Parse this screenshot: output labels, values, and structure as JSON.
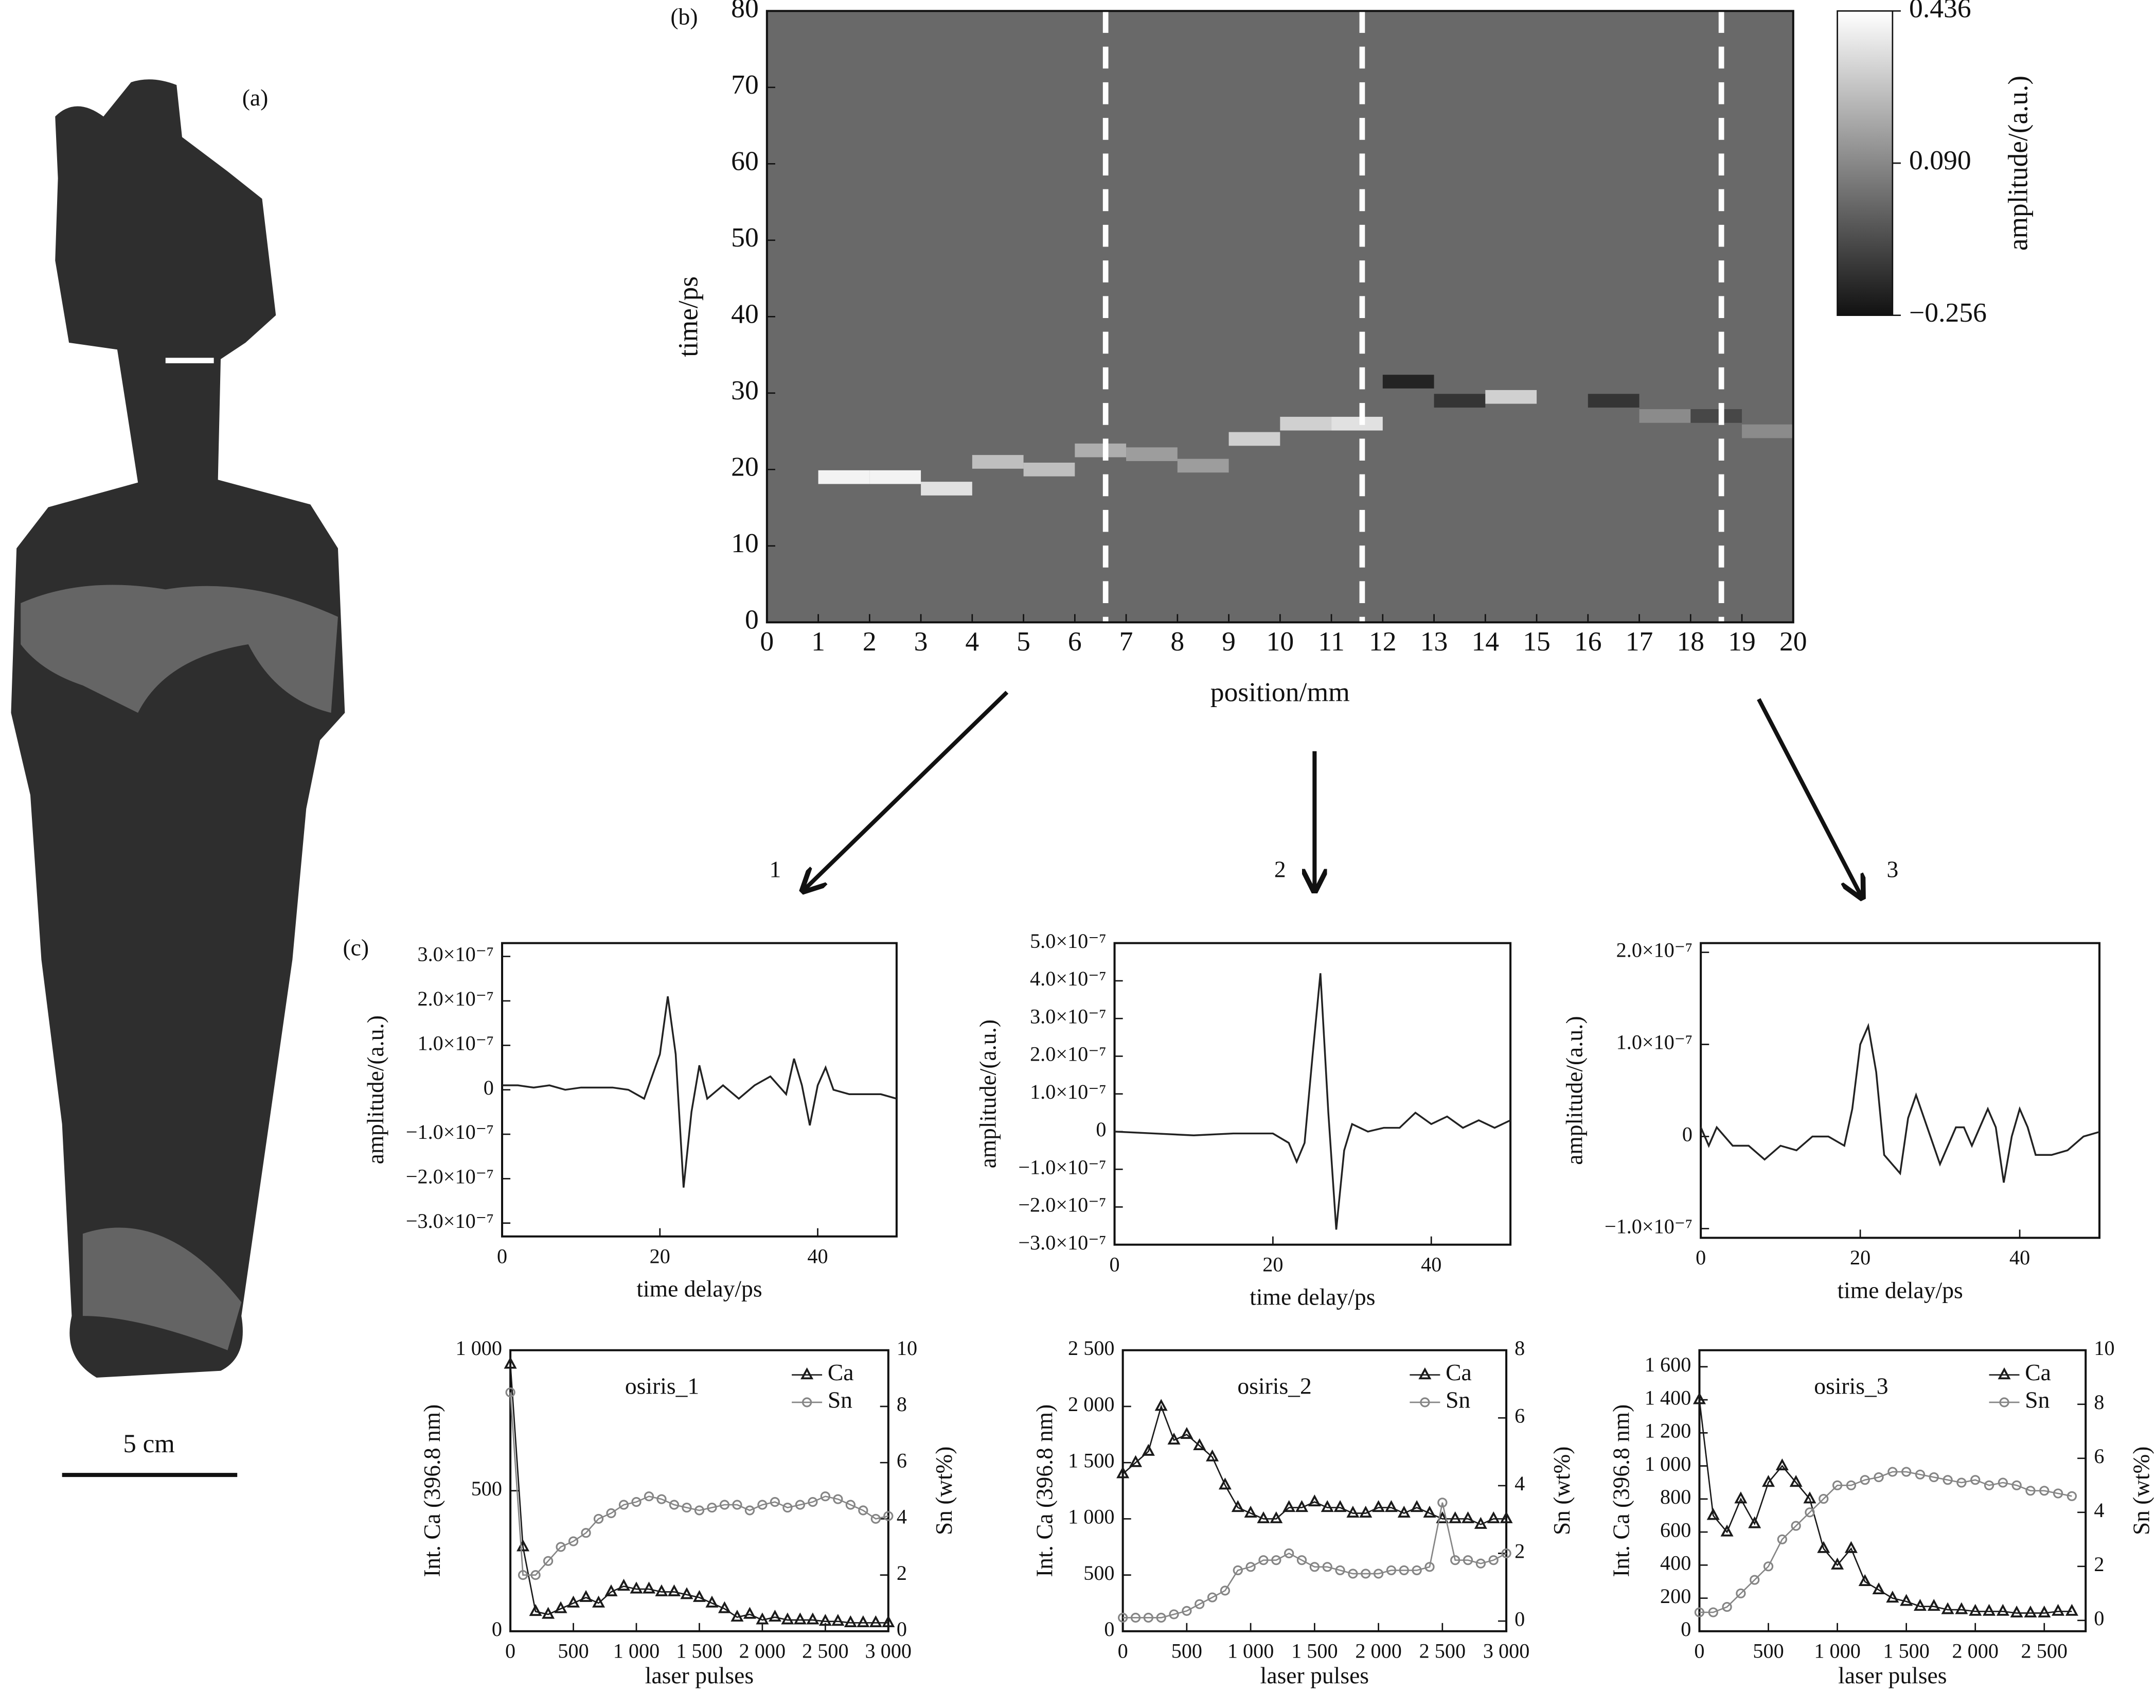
{
  "figure": {
    "panel_a": "(a)",
    "scale_bar": "5 cm",
    "arrow_labels": [
      "1",
      "2",
      "3"
    ]
  },
  "chart_data": [
    {
      "type": "heatmap",
      "panel_label": "(b)",
      "xlabel": "position/mm",
      "ylabel": "time/ps",
      "xlim": [
        0,
        20
      ],
      "xticks": [
        0,
        1,
        2,
        3,
        4,
        5,
        6,
        7,
        8,
        9,
        10,
        11,
        12,
        13,
        14,
        15,
        16,
        17,
        18,
        19,
        20
      ],
      "ylim": [
        0,
        80
      ],
      "yticks": [
        0,
        10,
        20,
        30,
        40,
        50,
        60,
        70,
        80
      ],
      "x": [
        0.5,
        1.5,
        2.5,
        3.5,
        4.5,
        5.5,
        6.5,
        7.5,
        8.5,
        9.5,
        10.5,
        11.5,
        12.5,
        13.5,
        14.5,
        15.5,
        16.5,
        17.5,
        18.5,
        19.5
      ],
      "values": [
        null,
        19,
        19,
        17.5,
        21,
        20,
        22.5,
        22,
        20.5,
        24,
        26,
        26,
        31.5,
        29,
        29.5,
        null,
        29,
        27,
        27,
        25
      ],
      "amplitude": [
        null,
        0.4,
        0.4,
        0.35,
        0.25,
        0.25,
        0.2,
        0.15,
        0.15,
        0.3,
        0.3,
        0.35,
        -0.2,
        -0.15,
        0.3,
        null,
        -0.15,
        0.1,
        -0.1,
        0.1
      ],
      "dashed_lines": [
        6.6,
        11.6,
        18.6
      ],
      "colorbar": {
        "label": "amplitude/(a.u.)",
        "lim": [
          -0.256,
          0.436
        ],
        "ticks": [
          {
            "value": -0.256,
            "label": "−0.256"
          },
          {
            "value": 0.09,
            "label": "0.090"
          },
          0.436
        ]
      }
    },
    {
      "type": "line",
      "panel_label": "(c)",
      "xlabel": "time delay/ps",
      "ylabel": "amplitude/(a.u.)",
      "color": "#222222",
      "xlim": [
        0,
        50
      ],
      "xticks": [
        0,
        20,
        40
      ],
      "ylim": [
        -3.3e-07,
        3.3e-07
      ],
      "yticks": [
        {
          "value": -3e-07,
          "label": "−3.0×10⁻⁷"
        },
        {
          "value": -2e-07,
          "label": "−2.0×10⁻⁷"
        },
        {
          "value": -1e-07,
          "label": "−1.0×10⁻⁷"
        },
        0,
        {
          "value": 1e-07,
          "label": "1.0×10⁻⁷"
        },
        {
          "value": 2e-07,
          "label": "2.0×10⁻⁷"
        },
        {
          "value": 3e-07,
          "label": "3.0×10⁻⁷"
        }
      ],
      "x": [
        0,
        2,
        4,
        6,
        8,
        10,
        12,
        14,
        16,
        18,
        20,
        21,
        22,
        23,
        24,
        25,
        26,
        28,
        30,
        32,
        34,
        36,
        37,
        38,
        39,
        40,
        41,
        42,
        44,
        46,
        48,
        50
      ],
      "values": [
        1e-08,
        1e-08,
        5e-09,
        1e-08,
        0,
        5e-09,
        5e-09,
        5e-09,
        0,
        -2e-08,
        8e-08,
        2.1e-07,
        8e-08,
        -2.2e-07,
        -5e-08,
        5.5e-08,
        -2e-08,
        1e-08,
        -2e-08,
        1e-08,
        3e-08,
        -1e-08,
        7e-08,
        1e-08,
        -8e-08,
        1e-08,
        5e-08,
        0,
        -1e-08,
        -1e-08,
        -1e-08,
        -2e-08
      ]
    },
    {
      "type": "line",
      "xlabel": "time delay/ps",
      "ylabel": "amplitude/(a.u.)",
      "color": "#222222",
      "xlim": [
        0,
        50
      ],
      "xticks": [
        0,
        20,
        40
      ],
      "ylim": [
        -3e-07,
        5e-07
      ],
      "yticks": [
        {
          "value": -3e-07,
          "label": "−3.0×10⁻⁷"
        },
        {
          "value": -2e-07,
          "label": "−2.0×10⁻⁷"
        },
        {
          "value": -1e-07,
          "label": "−1.0×10⁻⁷"
        },
        0,
        {
          "value": 1e-07,
          "label": "1.0×10⁻⁷"
        },
        {
          "value": 2e-07,
          "label": "2.0×10⁻⁷"
        },
        {
          "value": 3e-07,
          "label": "3.0×10⁻⁷"
        },
        {
          "value": 4e-07,
          "label": "4.0×10⁻⁷"
        },
        {
          "value": 5e-07,
          "label": "5.0×10⁻⁷"
        }
      ],
      "x": [
        0,
        5,
        10,
        15,
        20,
        22,
        23,
        24,
        25,
        26,
        27,
        28,
        29,
        30,
        32,
        34,
        36,
        38,
        40,
        42,
        44,
        46,
        48,
        50
      ],
      "values": [
        0,
        -5e-09,
        -1e-08,
        -5e-09,
        -5e-09,
        -3e-08,
        -8e-08,
        -3e-08,
        2e-07,
        4.2e-07,
        5e-08,
        -2.6e-07,
        -5e-08,
        2e-08,
        0,
        1e-08,
        1e-08,
        5e-08,
        2e-08,
        4e-08,
        1e-08,
        3e-08,
        1e-08,
        3e-08
      ]
    },
    {
      "type": "line",
      "xlabel": "time delay/ps",
      "ylabel": "amplitude/(a.u.)",
      "color": "#222222",
      "xlim": [
        0,
        50
      ],
      "xticks": [
        0,
        20,
        40
      ],
      "ylim": [
        -1.1e-07,
        2.1e-07
      ],
      "yticks": [
        {
          "value": -1e-07,
          "label": "−1.0×10⁻⁷"
        },
        0,
        {
          "value": 1e-07,
          "label": "1.0×10⁻⁷"
        },
        {
          "value": 2e-07,
          "label": "2.0×10⁻⁷"
        }
      ],
      "x": [
        0,
        1,
        2,
        4,
        6,
        8,
        10,
        12,
        14,
        16,
        18,
        19,
        20,
        21,
        22,
        23,
        25,
        26,
        27,
        28,
        30,
        32,
        33,
        34,
        36,
        37,
        38,
        39,
        40,
        41,
        42,
        44,
        46,
        48,
        50
      ],
      "values": [
        1e-08,
        -1e-08,
        1e-08,
        -1e-08,
        -1e-08,
        -2.5e-08,
        -1e-08,
        -1.5e-08,
        0,
        0,
        -1e-08,
        3e-08,
        1e-07,
        1.2e-07,
        7e-08,
        -2e-08,
        -4e-08,
        2e-08,
        4.5e-08,
        2e-08,
        -3e-08,
        1e-08,
        1e-08,
        -1e-08,
        3e-08,
        1e-08,
        -5e-08,
        0,
        3e-08,
        1e-08,
        -2e-08,
        -2e-08,
        -1.5e-08,
        0,
        5e-09
      ]
    },
    {
      "type": "dual",
      "title": "osiris_1",
      "xlabel": "laser pulses",
      "ylabel": "Int. Ca (396.8 nm)",
      "y2label": "Sn (wt%)",
      "xlim": [
        0,
        3000
      ],
      "xticks": [
        0,
        500,
        {
          "value": 1000,
          "label": "1 000"
        },
        {
          "value": 1500,
          "label": "1 500"
        },
        {
          "value": 2000,
          "label": "2 000"
        },
        {
          "value": 2500,
          "label": "2 500"
        },
        {
          "value": 3000,
          "label": "3 000"
        }
      ],
      "ylim": [
        0,
        1000
      ],
      "yticks": [
        0,
        500,
        {
          "value": 1000,
          "label": "1 000"
        }
      ],
      "y2lim": [
        0,
        10
      ],
      "y2ticks": [
        0,
        2,
        4,
        6,
        8,
        10
      ],
      "x": [
        0,
        100,
        200,
        300,
        400,
        500,
        600,
        700,
        800,
        900,
        1000,
        1100,
        1200,
        1300,
        1400,
        1500,
        1600,
        1700,
        1800,
        1900,
        2000,
        2100,
        2200,
        2300,
        2400,
        2500,
        2600,
        2700,
        2800,
        2900,
        3000
      ],
      "series": [
        {
          "name": "Ca",
          "color": "#1a1a1a",
          "marker": "triangle",
          "values": [
            950,
            300,
            70,
            60,
            80,
            100,
            120,
            100,
            140,
            160,
            150,
            150,
            140,
            140,
            130,
            120,
            100,
            80,
            50,
            60,
            40,
            50,
            40,
            40,
            40,
            35,
            35,
            30,
            30,
            30,
            30
          ]
        },
        {
          "name": "Sn",
          "color": "#858585",
          "marker": "circle",
          "axis": "y2",
          "values": [
            8.5,
            2,
            2,
            2.5,
            3,
            3.2,
            3.5,
            4,
            4.2,
            4.5,
            4.6,
            4.8,
            4.7,
            4.5,
            4.4,
            4.3,
            4.4,
            4.5,
            4.5,
            4.3,
            4.5,
            4.6,
            4.4,
            4.5,
            4.6,
            4.8,
            4.7,
            4.5,
            4.3,
            4,
            4.1
          ]
        }
      ]
    },
    {
      "type": "dual",
      "title": "osiris_2",
      "xlabel": "laser pulses",
      "ylabel": "Int. Ca (396.8 nm)",
      "y2label": "Sn (wt%)",
      "xlim": [
        0,
        3000
      ],
      "xticks": [
        0,
        500,
        {
          "value": 1000,
          "label": "1 000"
        },
        {
          "value": 1500,
          "label": "1 500"
        },
        {
          "value": 2000,
          "label": "2 000"
        },
        {
          "value": 2500,
          "label": "2 500"
        },
        {
          "value": 3000,
          "label": "3 000"
        }
      ],
      "ylim": [
        0,
        2500
      ],
      "yticks": [
        0,
        500,
        {
          "value": 1000,
          "label": "1 000"
        },
        {
          "value": 1500,
          "label": "1 500"
        },
        {
          "value": 2000,
          "label": "2 000"
        },
        {
          "value": 2500,
          "label": "2 500"
        }
      ],
      "y2lim": [
        -0.3,
        8
      ],
      "y2ticks": [
        0,
        2,
        4,
        6,
        8
      ],
      "x": [
        0,
        100,
        200,
        300,
        400,
        500,
        600,
        700,
        800,
        900,
        1000,
        1100,
        1200,
        1300,
        1400,
        1500,
        1600,
        1700,
        1800,
        1900,
        2000,
        2100,
        2200,
        2300,
        2400,
        2500,
        2600,
        2700,
        2800,
        2900,
        3000
      ],
      "series": [
        {
          "name": "Ca",
          "color": "#1a1a1a",
          "marker": "triangle",
          "values": [
            1400,
            1500,
            1600,
            2000,
            1700,
            1750,
            1650,
            1550,
            1300,
            1100,
            1050,
            1000,
            1000,
            1100,
            1100,
            1150,
            1100,
            1100,
            1050,
            1050,
            1100,
            1100,
            1050,
            1100,
            1050,
            1000,
            1000,
            1000,
            950,
            1000,
            1000
          ]
        },
        {
          "name": "Sn",
          "color": "#858585",
          "marker": "circle",
          "axis": "y2",
          "values": [
            0.1,
            0.1,
            0.1,
            0.1,
            0.2,
            0.3,
            0.5,
            0.7,
            0.9,
            1.5,
            1.6,
            1.8,
            1.8,
            2,
            1.8,
            1.6,
            1.6,
            1.5,
            1.4,
            1.4,
            1.4,
            1.5,
            1.5,
            1.5,
            1.6,
            3.5,
            1.8,
            1.8,
            1.7,
            1.8,
            2
          ]
        }
      ]
    },
    {
      "type": "dual",
      "title": "osiris_3",
      "xlabel": "laser pulses",
      "ylabel": "Int. Ca (396.8 nm)",
      "y2label": "Sn (wt%)",
      "xlim": [
        0,
        2800
      ],
      "xticks": [
        0,
        500,
        {
          "value": 1000,
          "label": "1 000"
        },
        {
          "value": 1500,
          "label": "1 500"
        },
        {
          "value": 2000,
          "label": "2 000"
        },
        {
          "value": 2500,
          "label": "2 500"
        }
      ],
      "ylim": [
        0,
        1700
      ],
      "yticks": [
        0,
        200,
        400,
        600,
        800,
        {
          "value": 1000,
          "label": "1 000"
        },
        {
          "value": 1200,
          "label": "1 200"
        },
        {
          "value": 1400,
          "label": "1 400"
        },
        {
          "value": 1600,
          "label": "1 600"
        }
      ],
      "y2lim": [
        -0.4,
        10
      ],
      "y2ticks": [
        0,
        2,
        4,
        6,
        8,
        10
      ],
      "x": [
        0,
        100,
        200,
        300,
        400,
        500,
        600,
        700,
        800,
        900,
        1000,
        1100,
        1200,
        1300,
        1400,
        1500,
        1600,
        1700,
        1800,
        1900,
        2000,
        2100,
        2200,
        2300,
        2400,
        2500,
        2600,
        2700
      ],
      "series": [
        {
          "name": "Ca",
          "color": "#1a1a1a",
          "marker": "triangle",
          "values": [
            1400,
            700,
            600,
            800,
            650,
            900,
            1000,
            900,
            800,
            500,
            400,
            500,
            300,
            250,
            200,
            180,
            150,
            150,
            130,
            130,
            120,
            120,
            120,
            110,
            110,
            110,
            120,
            120
          ]
        },
        {
          "name": "Sn",
          "color": "#858585",
          "marker": "circle",
          "axis": "y2",
          "values": [
            0.3,
            0.3,
            0.5,
            1,
            1.5,
            2,
            3,
            3.5,
            4,
            4.5,
            5,
            5,
            5.2,
            5.3,
            5.5,
            5.5,
            5.4,
            5.3,
            5.2,
            5.1,
            5.2,
            5,
            5.1,
            5,
            4.8,
            4.8,
            4.7,
            4.6
          ]
        }
      ]
    }
  ]
}
